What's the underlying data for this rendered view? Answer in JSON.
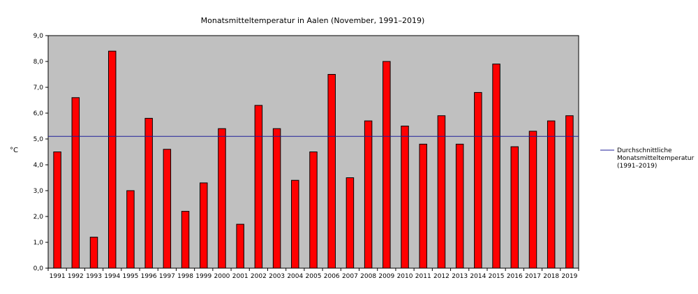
{
  "chart_data": {
    "type": "bar",
    "title": "Monatsmitteltemperatur in Aalen (November, 1991–2019)",
    "xlabel": "",
    "ylabel": "°C",
    "ylim": [
      0,
      9
    ],
    "yticks": [
      "0,0",
      "1,0",
      "2,0",
      "3,0",
      "4,0",
      "5,0",
      "6,0",
      "7,0",
      "8,0",
      "9,0"
    ],
    "categories": [
      "1991",
      "1992",
      "1993",
      "1994",
      "1995",
      "1996",
      "1997",
      "1998",
      "1999",
      "2000",
      "2001",
      "2002",
      "2003",
      "2004",
      "2005",
      "2006",
      "2007",
      "2008",
      "2009",
      "2010",
      "2011",
      "2012",
      "2013",
      "2014",
      "2015",
      "2016",
      "2017",
      "2018",
      "2019"
    ],
    "series": [
      {
        "values": [
          4.5,
          6.6,
          1.2,
          8.4,
          3.0,
          5.8,
          4.6,
          2.2,
          3.3,
          5.4,
          1.7,
          6.3,
          5.4,
          3.4,
          4.5,
          7.5,
          3.5,
          5.7,
          8.0,
          5.5,
          4.8,
          5.9,
          4.8,
          6.8,
          7.9,
          4.7,
          5.3,
          5.7,
          5.9
        ],
        "color": "#ff0000"
      }
    ],
    "reference_line": {
      "value": 5.1,
      "color": "#1f1f9a",
      "legend_lines": [
        "Durchschnittliche",
        "Monatsmitteltemperatur",
        "(1991–2019)"
      ]
    },
    "plot_background": "#c0c0c0",
    "grid": false,
    "legend_position": "right"
  }
}
